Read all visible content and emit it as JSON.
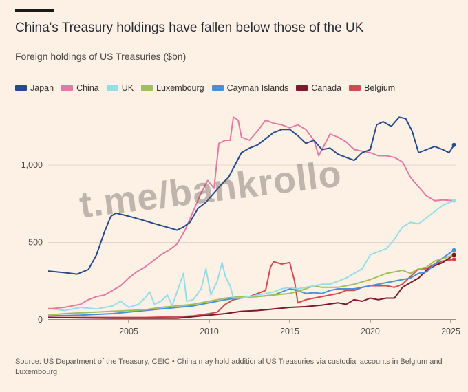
{
  "title": "China's Treasury holdings have fallen below those of the UK",
  "subtitle": "Foreign holdings of US Treasuries ($bn)",
  "source": "Source: US Department of the Treasury, CEIC • China may hold additional US Treasuries via custodial accounts in Belgium and Luxembourg",
  "watermark": "t.me/bankrollo",
  "chart_data": {
    "type": "line",
    "xlim": [
      2000,
      2025.3
    ],
    "ylim": [
      0,
      1400
    ],
    "x_ticks": [
      2005,
      2010,
      2015,
      2020,
      2025
    ],
    "x_tick_labels": [
      "2005",
      "2010",
      "2015",
      "2020",
      "2025"
    ],
    "y_ticks": [
      0,
      500,
      1000
    ],
    "y_tick_labels": [
      "0",
      "500",
      "1,000"
    ],
    "grid": "horizontal",
    "legend_position": "top-left",
    "series": [
      {
        "name": "Japan",
        "color": "#264a8c",
        "endpoint": true,
        "points": [
          [
            2000,
            315
          ],
          [
            2001,
            305
          ],
          [
            2001.8,
            295
          ],
          [
            2002.5,
            325
          ],
          [
            2003,
            420
          ],
          [
            2003.5,
            570
          ],
          [
            2003.9,
            670
          ],
          [
            2004.2,
            690
          ],
          [
            2004.6,
            680
          ],
          [
            2005,
            670
          ],
          [
            2005.5,
            655
          ],
          [
            2006,
            640
          ],
          [
            2006.5,
            625
          ],
          [
            2007,
            610
          ],
          [
            2007.5,
            595
          ],
          [
            2008,
            580
          ],
          [
            2008.4,
            600
          ],
          [
            2008.8,
            630
          ],
          [
            2009.3,
            720
          ],
          [
            2009.8,
            760
          ],
          [
            2010.3,
            820
          ],
          [
            2010.8,
            880
          ],
          [
            2011.2,
            920
          ],
          [
            2011.6,
            1000
          ],
          [
            2012,
            1080
          ],
          [
            2012.5,
            1110
          ],
          [
            2013,
            1130
          ],
          [
            2013.5,
            1170
          ],
          [
            2014,
            1210
          ],
          [
            2014.5,
            1230
          ],
          [
            2015,
            1230
          ],
          [
            2015.5,
            1190
          ],
          [
            2016,
            1140
          ],
          [
            2016.5,
            1160
          ],
          [
            2017,
            1100
          ],
          [
            2017.5,
            1110
          ],
          [
            2018,
            1070
          ],
          [
            2018.5,
            1050
          ],
          [
            2019,
            1030
          ],
          [
            2019.5,
            1080
          ],
          [
            2020,
            1100
          ],
          [
            2020.4,
            1260
          ],
          [
            2020.8,
            1280
          ],
          [
            2021.3,
            1250
          ],
          [
            2021.8,
            1310
          ],
          [
            2022.2,
            1300
          ],
          [
            2022.6,
            1220
          ],
          [
            2023,
            1080
          ],
          [
            2023.5,
            1100
          ],
          [
            2024,
            1120
          ],
          [
            2024.5,
            1100
          ],
          [
            2024.9,
            1080
          ],
          [
            2025.2,
            1130
          ]
        ]
      },
      {
        "name": "China",
        "color": "#e27aa3",
        "points": [
          [
            2000,
            70
          ],
          [
            2001,
            80
          ],
          [
            2002,
            100
          ],
          [
            2002.5,
            130
          ],
          [
            2003,
            150
          ],
          [
            2003.5,
            160
          ],
          [
            2004,
            190
          ],
          [
            2004.5,
            220
          ],
          [
            2005,
            270
          ],
          [
            2005.5,
            310
          ],
          [
            2006,
            340
          ],
          [
            2006.5,
            380
          ],
          [
            2007,
            420
          ],
          [
            2007.5,
            450
          ],
          [
            2008,
            490
          ],
          [
            2008.5,
            580
          ],
          [
            2009,
            700
          ],
          [
            2009.5,
            820
          ],
          [
            2009.9,
            900
          ],
          [
            2010.3,
            850
          ],
          [
            2010.6,
            1140
          ],
          [
            2011,
            1160
          ],
          [
            2011.3,
            1160
          ],
          [
            2011.5,
            1310
          ],
          [
            2011.8,
            1290
          ],
          [
            2012,
            1180
          ],
          [
            2012.5,
            1160
          ],
          [
            2013,
            1220
          ],
          [
            2013.5,
            1290
          ],
          [
            2014,
            1270
          ],
          [
            2014.5,
            1260
          ],
          [
            2015,
            1240
          ],
          [
            2015.5,
            1260
          ],
          [
            2016,
            1230
          ],
          [
            2016.5,
            1160
          ],
          [
            2016.8,
            1060
          ],
          [
            2017.2,
            1140
          ],
          [
            2017.5,
            1200
          ],
          [
            2018,
            1180
          ],
          [
            2018.5,
            1150
          ],
          [
            2019,
            1100
          ],
          [
            2019.5,
            1090
          ],
          [
            2020,
            1080
          ],
          [
            2020.5,
            1060
          ],
          [
            2021,
            1060
          ],
          [
            2021.5,
            1050
          ],
          [
            2022,
            1020
          ],
          [
            2022.5,
            920
          ],
          [
            2023,
            860
          ],
          [
            2023.5,
            800
          ],
          [
            2024,
            770
          ],
          [
            2024.5,
            775
          ],
          [
            2025.2,
            770
          ]
        ]
      },
      {
        "name": "UK",
        "color": "#96dde8",
        "endpoint": true,
        "points": [
          [
            2000,
            75
          ],
          [
            2001,
            60
          ],
          [
            2002,
            80
          ],
          [
            2003,
            70
          ],
          [
            2004,
            90
          ],
          [
            2004.5,
            120
          ],
          [
            2005,
            80
          ],
          [
            2005.6,
            100
          ],
          [
            2006,
            140
          ],
          [
            2006.3,
            180
          ],
          [
            2006.6,
            100
          ],
          [
            2007,
            120
          ],
          [
            2007.4,
            160
          ],
          [
            2007.7,
            90
          ],
          [
            2008,
            180
          ],
          [
            2008.4,
            300
          ],
          [
            2008.6,
            120
          ],
          [
            2009,
            130
          ],
          [
            2009.5,
            200
          ],
          [
            2009.8,
            330
          ],
          [
            2010.1,
            160
          ],
          [
            2010.5,
            250
          ],
          [
            2010.8,
            370
          ],
          [
            2011,
            280
          ],
          [
            2011.3,
            220
          ],
          [
            2011.5,
            140
          ],
          [
            2012,
            140
          ],
          [
            2012.5,
            150
          ],
          [
            2013,
            160
          ],
          [
            2013.5,
            170
          ],
          [
            2014,
            180
          ],
          [
            2014.5,
            200
          ],
          [
            2015,
            210
          ],
          [
            2015.5,
            200
          ],
          [
            2016,
            210
          ],
          [
            2016.5,
            220
          ],
          [
            2017,
            230
          ],
          [
            2017.5,
            230
          ],
          [
            2018,
            250
          ],
          [
            2018.5,
            270
          ],
          [
            2019,
            300
          ],
          [
            2019.5,
            330
          ],
          [
            2020,
            420
          ],
          [
            2020.5,
            440
          ],
          [
            2021,
            460
          ],
          [
            2021.5,
            520
          ],
          [
            2022,
            600
          ],
          [
            2022.5,
            630
          ],
          [
            2023,
            620
          ],
          [
            2023.5,
            660
          ],
          [
            2024,
            700
          ],
          [
            2024.5,
            740
          ],
          [
            2025.2,
            770
          ]
        ]
      },
      {
        "name": "Luxembourg",
        "color": "#9ebf5c",
        "endpoint": true,
        "points": [
          [
            2000,
            30
          ],
          [
            2001,
            40
          ],
          [
            2002,
            45
          ],
          [
            2003,
            50
          ],
          [
            2004,
            55
          ],
          [
            2005,
            60
          ],
          [
            2006,
            65
          ],
          [
            2007,
            80
          ],
          [
            2008,
            90
          ],
          [
            2009,
            100
          ],
          [
            2010,
            120
          ],
          [
            2011,
            140
          ],
          [
            2012,
            150
          ],
          [
            2013,
            150
          ],
          [
            2014,
            160
          ],
          [
            2015,
            170
          ],
          [
            2016,
            200
          ],
          [
            2016.5,
            220
          ],
          [
            2017,
            210
          ],
          [
            2018,
            210
          ],
          [
            2019,
            230
          ],
          [
            2020,
            260
          ],
          [
            2020.5,
            280
          ],
          [
            2021,
            300
          ],
          [
            2021.5,
            310
          ],
          [
            2022,
            320
          ],
          [
            2022.5,
            300
          ],
          [
            2023,
            330
          ],
          [
            2023.5,
            340
          ],
          [
            2024,
            380
          ],
          [
            2024.5,
            395
          ],
          [
            2025.2,
            420
          ]
        ]
      },
      {
        "name": "Cayman Islands",
        "color": "#4a8fd9",
        "endpoint": true,
        "points": [
          [
            2000,
            25
          ],
          [
            2002,
            30
          ],
          [
            2004,
            40
          ],
          [
            2006,
            60
          ],
          [
            2008,
            80
          ],
          [
            2009,
            90
          ],
          [
            2010,
            110
          ],
          [
            2011,
            130
          ],
          [
            2012,
            145
          ],
          [
            2013,
            150
          ],
          [
            2014,
            160
          ],
          [
            2014.5,
            180
          ],
          [
            2015,
            200
          ],
          [
            2015.5,
            190
          ],
          [
            2016,
            170
          ],
          [
            2016.5,
            175
          ],
          [
            2017,
            170
          ],
          [
            2017.5,
            190
          ],
          [
            2018,
            200
          ],
          [
            2019,
            200
          ],
          [
            2020,
            220
          ],
          [
            2021,
            240
          ],
          [
            2022,
            260
          ],
          [
            2022.5,
            270
          ],
          [
            2023,
            300
          ],
          [
            2023.5,
            310
          ],
          [
            2024,
            360
          ],
          [
            2024.5,
            400
          ],
          [
            2025.2,
            450
          ]
        ]
      },
      {
        "name": "Canada",
        "color": "#7a1a2a",
        "endpoint": true,
        "points": [
          [
            2000,
            15
          ],
          [
            2002,
            12
          ],
          [
            2004,
            10
          ],
          [
            2006,
            10
          ],
          [
            2008,
            10
          ],
          [
            2009,
            20
          ],
          [
            2010,
            30
          ],
          [
            2011,
            40
          ],
          [
            2012,
            55
          ],
          [
            2013,
            60
          ],
          [
            2014,
            70
          ],
          [
            2015,
            80
          ],
          [
            2016,
            85
          ],
          [
            2017,
            95
          ],
          [
            2018,
            110
          ],
          [
            2018.5,
            100
          ],
          [
            2019,
            130
          ],
          [
            2019.5,
            120
          ],
          [
            2020,
            140
          ],
          [
            2020.5,
            130
          ],
          [
            2021,
            140
          ],
          [
            2021.5,
            140
          ],
          [
            2022,
            210
          ],
          [
            2022.5,
            240
          ],
          [
            2023,
            270
          ],
          [
            2023.5,
            320
          ],
          [
            2024,
            350
          ],
          [
            2024.5,
            370
          ],
          [
            2025.2,
            420
          ]
        ]
      },
      {
        "name": "Belgium",
        "color": "#cc4b4f",
        "endpoint": true,
        "points": [
          [
            2000,
            15
          ],
          [
            2002,
            15
          ],
          [
            2004,
            15
          ],
          [
            2006,
            15
          ],
          [
            2008,
            20
          ],
          [
            2009,
            25
          ],
          [
            2010,
            40
          ],
          [
            2010.5,
            50
          ],
          [
            2011,
            100
          ],
          [
            2011.5,
            130
          ],
          [
            2012,
            140
          ],
          [
            2012.5,
            150
          ],
          [
            2013,
            170
          ],
          [
            2013.5,
            190
          ],
          [
            2013.8,
            340
          ],
          [
            2014,
            375
          ],
          [
            2014.5,
            360
          ],
          [
            2015,
            370
          ],
          [
            2015.3,
            250
          ],
          [
            2015.5,
            110
          ],
          [
            2016,
            130
          ],
          [
            2016.5,
            140
          ],
          [
            2017,
            150
          ],
          [
            2017.5,
            160
          ],
          [
            2018,
            170
          ],
          [
            2018.5,
            190
          ],
          [
            2019,
            190
          ],
          [
            2019.5,
            210
          ],
          [
            2020,
            220
          ],
          [
            2020.5,
            220
          ],
          [
            2021,
            220
          ],
          [
            2021.5,
            210
          ],
          [
            2022,
            230
          ],
          [
            2022.5,
            280
          ],
          [
            2023,
            330
          ],
          [
            2023.5,
            330
          ],
          [
            2024,
            360
          ],
          [
            2024.5,
            380
          ],
          [
            2025.2,
            390
          ]
        ]
      }
    ]
  }
}
